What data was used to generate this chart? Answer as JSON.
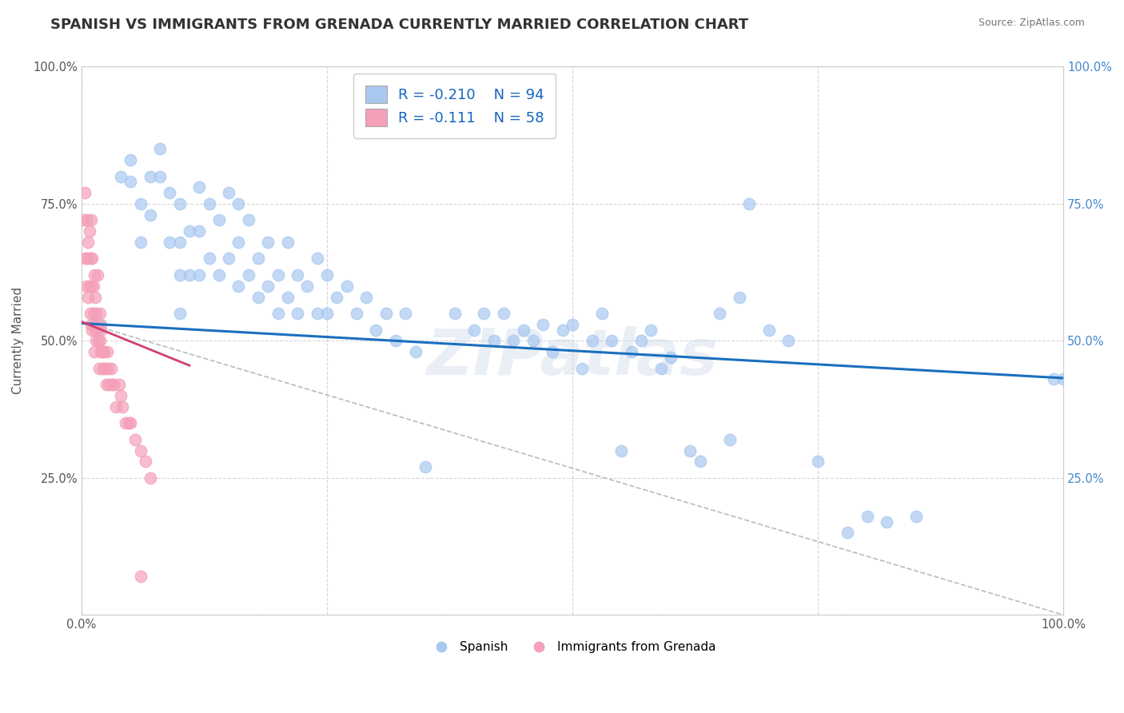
{
  "title": "SPANISH VS IMMIGRANTS FROM GRENADA CURRENTLY MARRIED CORRELATION CHART",
  "source": "Source: ZipAtlas.com",
  "xlabel": "",
  "ylabel": "Currently Married",
  "xlim": [
    0,
    1
  ],
  "ylim": [
    0,
    1
  ],
  "xticks": [
    0.0,
    0.25,
    0.5,
    0.75,
    1.0
  ],
  "yticks": [
    0.0,
    0.25,
    0.5,
    0.75,
    1.0
  ],
  "xticklabels": [
    "0.0%",
    "",
    "",
    "",
    "100.0%"
  ],
  "yticklabels": [
    "",
    "25.0%",
    "50.0%",
    "75.0%",
    "100.0%"
  ],
  "right_yticklabels": [
    "",
    "25.0%",
    "50.0%",
    "75.0%",
    "100.0%"
  ],
  "blue_R": -0.21,
  "blue_N": 94,
  "pink_R": -0.111,
  "pink_N": 58,
  "blue_color": "#A8C8F0",
  "pink_color": "#F4A0B8",
  "blue_line_color": "#1A6FBF",
  "pink_line_color": "#D04070",
  "watermark": "ZIPatlas",
  "blue_line_x0": 0.0,
  "blue_line_y0": 0.532,
  "blue_line_x1": 1.0,
  "blue_line_y1": 0.432,
  "pink_line_x0": 0.0,
  "pink_line_y0": 0.535,
  "pink_line_x1": 0.11,
  "pink_line_y1": 0.455,
  "dashed_line_x0": 0.0,
  "dashed_line_y0": 0.535,
  "dashed_line_x1": 1.0,
  "dashed_line_y1": 0.0,
  "blue_scatter_x": [
    0.02,
    0.04,
    0.05,
    0.05,
    0.06,
    0.06,
    0.07,
    0.07,
    0.08,
    0.08,
    0.09,
    0.09,
    0.1,
    0.1,
    0.1,
    0.1,
    0.11,
    0.11,
    0.12,
    0.12,
    0.12,
    0.13,
    0.13,
    0.14,
    0.14,
    0.15,
    0.15,
    0.16,
    0.16,
    0.16,
    0.17,
    0.17,
    0.18,
    0.18,
    0.19,
    0.19,
    0.2,
    0.2,
    0.21,
    0.21,
    0.22,
    0.22,
    0.23,
    0.24,
    0.24,
    0.25,
    0.25,
    0.26,
    0.27,
    0.28,
    0.29,
    0.3,
    0.31,
    0.32,
    0.33,
    0.34,
    0.35,
    0.38,
    0.4,
    0.41,
    0.42,
    0.43,
    0.44,
    0.45,
    0.46,
    0.47,
    0.48,
    0.49,
    0.5,
    0.51,
    0.52,
    0.53,
    0.54,
    0.55,
    0.56,
    0.57,
    0.58,
    0.59,
    0.6,
    0.62,
    0.63,
    0.65,
    0.66,
    0.67,
    0.68,
    0.7,
    0.72,
    0.75,
    0.78,
    0.8,
    0.82,
    0.85,
    0.99,
    1.0
  ],
  "blue_scatter_y": [
    0.53,
    0.8,
    0.83,
    0.79,
    0.68,
    0.75,
    0.8,
    0.73,
    0.8,
    0.85,
    0.77,
    0.68,
    0.75,
    0.68,
    0.62,
    0.55,
    0.7,
    0.62,
    0.78,
    0.7,
    0.62,
    0.75,
    0.65,
    0.72,
    0.62,
    0.77,
    0.65,
    0.75,
    0.68,
    0.6,
    0.72,
    0.62,
    0.65,
    0.58,
    0.68,
    0.6,
    0.62,
    0.55,
    0.68,
    0.58,
    0.62,
    0.55,
    0.6,
    0.65,
    0.55,
    0.62,
    0.55,
    0.58,
    0.6,
    0.55,
    0.58,
    0.52,
    0.55,
    0.5,
    0.55,
    0.48,
    0.27,
    0.55,
    0.52,
    0.55,
    0.5,
    0.55,
    0.5,
    0.52,
    0.5,
    0.53,
    0.48,
    0.52,
    0.53,
    0.45,
    0.5,
    0.55,
    0.5,
    0.3,
    0.48,
    0.5,
    0.52,
    0.45,
    0.47,
    0.3,
    0.28,
    0.55,
    0.32,
    0.58,
    0.75,
    0.52,
    0.5,
    0.28,
    0.15,
    0.18,
    0.17,
    0.18,
    0.43,
    0.43
  ],
  "pink_scatter_x": [
    0.002,
    0.003,
    0.004,
    0.005,
    0.006,
    0.006,
    0.007,
    0.007,
    0.008,
    0.008,
    0.009,
    0.009,
    0.01,
    0.01,
    0.01,
    0.011,
    0.011,
    0.012,
    0.012,
    0.013,
    0.013,
    0.013,
    0.014,
    0.014,
    0.015,
    0.015,
    0.016,
    0.016,
    0.017,
    0.018,
    0.018,
    0.019,
    0.019,
    0.02,
    0.02,
    0.021,
    0.022,
    0.023,
    0.024,
    0.025,
    0.026,
    0.027,
    0.028,
    0.03,
    0.031,
    0.033,
    0.035,
    0.038,
    0.04,
    0.042,
    0.045,
    0.048,
    0.05,
    0.055,
    0.06,
    0.065,
    0.07,
    0.06
  ],
  "pink_scatter_y": [
    0.72,
    0.77,
    0.65,
    0.6,
    0.72,
    0.65,
    0.68,
    0.58,
    0.6,
    0.7,
    0.55,
    0.65,
    0.6,
    0.53,
    0.72,
    0.52,
    0.65,
    0.55,
    0.6,
    0.53,
    0.48,
    0.62,
    0.52,
    0.58,
    0.5,
    0.55,
    0.52,
    0.62,
    0.5,
    0.53,
    0.45,
    0.5,
    0.55,
    0.48,
    0.52,
    0.48,
    0.45,
    0.48,
    0.45,
    0.42,
    0.48,
    0.45,
    0.42,
    0.45,
    0.42,
    0.42,
    0.38,
    0.42,
    0.4,
    0.38,
    0.35,
    0.35,
    0.35,
    0.32,
    0.3,
    0.28,
    0.25,
    0.07
  ],
  "background_color": "#FFFFFF",
  "grid_color": "#CCCCCC",
  "title_fontsize": 13,
  "axis_label_fontsize": 11,
  "tick_fontsize": 10.5,
  "legend_fontsize": 13
}
